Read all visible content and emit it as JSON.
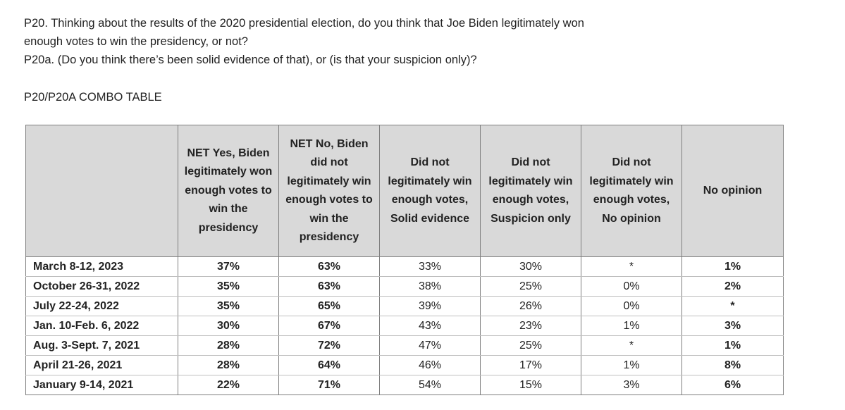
{
  "question": {
    "line1": "P20. Thinking about the results of the 2020 presidential election, do you think that Joe Biden legitimately won",
    "line2": "enough votes to win the presidency, or not?",
    "line3": "P20a. (Do you think there’s been solid evidence of that), or (is that your suspicion only)?"
  },
  "table_title": "P20/P20A COMBO TABLE",
  "table": {
    "headers": [
      "",
      "NET Yes, Biden legitimately won enough votes to win the presidency",
      "NET No, Biden did not legitimately win enough votes to win the presidency",
      "Did not legitimately win enough votes, Solid evidence",
      "Did not legitimately win enough votes, Suspicion only",
      "Did not legitimately win enough votes, No opinion",
      "No opinion"
    ],
    "rows": [
      {
        "date": "March 8-12, 2023",
        "net_yes": "37%",
        "net_no": "63%",
        "solid": "33%",
        "suspicion": "30%",
        "no_op_sub": "*",
        "no_opinion": "1%"
      },
      {
        "date": "October 26-31, 2022",
        "net_yes": "35%",
        "net_no": "63%",
        "solid": "38%",
        "suspicion": "25%",
        "no_op_sub": "0%",
        "no_opinion": "2%"
      },
      {
        "date": "July 22-24, 2022",
        "net_yes": "35%",
        "net_no": "65%",
        "solid": "39%",
        "suspicion": "26%",
        "no_op_sub": "0%",
        "no_opinion": "*"
      },
      {
        "date": "Jan. 10-Feb. 6, 2022",
        "net_yes": "30%",
        "net_no": "67%",
        "solid": "43%",
        "suspicion": "23%",
        "no_op_sub": "1%",
        "no_opinion": "3%"
      },
      {
        "date": "Aug. 3-Sept. 7, 2021",
        "net_yes": "28%",
        "net_no": "72%",
        "solid": "47%",
        "suspicion": "25%",
        "no_op_sub": "*",
        "no_opinion": "1%"
      },
      {
        "date": "April 21-26, 2021",
        "net_yes": "28%",
        "net_no": "64%",
        "solid": "46%",
        "suspicion": "17%",
        "no_op_sub": "1%",
        "no_opinion": "8%"
      },
      {
        "date": "January 9-14, 2021",
        "net_yes": "22%",
        "net_no": "71%",
        "solid": "54%",
        "suspicion": "15%",
        "no_op_sub": "3%",
        "no_opinion": "6%"
      }
    ]
  }
}
